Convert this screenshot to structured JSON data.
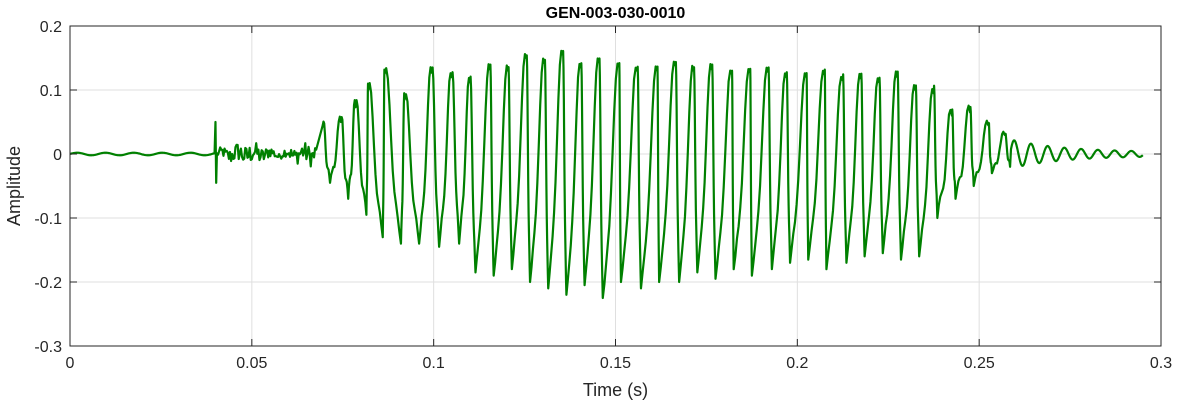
{
  "chart_data": {
    "type": "line",
    "title": "GEN-003-030-0010",
    "xlabel": "Time (s)",
    "ylabel": "Amplitude",
    "xlim": [
      0,
      0.3
    ],
    "ylim": [
      -0.3,
      0.2
    ],
    "xticks": [
      0,
      0.05,
      0.1,
      0.15,
      0.2,
      0.25,
      0.3
    ],
    "xtick_labels": [
      "0",
      "0.05",
      "0.1",
      "0.15",
      "0.2",
      "0.25",
      "0.3"
    ],
    "yticks": [
      -0.3,
      -0.2,
      -0.1,
      0,
      0.1,
      0.2
    ],
    "ytick_labels": [
      "-0.3",
      "-0.2",
      "-0.1",
      "0",
      "0.1",
      "0.2"
    ],
    "grid": true,
    "line_color": "#008000",
    "series": [
      {
        "signal_duration": 0.295,
        "onset_time": 0.04,
        "voiced_start": 0.068,
        "voiced_end": 0.262,
        "glottal_period": 0.0051,
        "pre_onset_period": 0.0078,
        "pre_onset_amplitude": 0.002,
        "transient_peak": [
          0.04,
          0.05
        ],
        "transient_trough": [
          0.04,
          -0.045
        ],
        "peaks": [
          [
            0.0695,
            0.045
          ],
          [
            0.0745,
            0.05
          ],
          [
            0.0785,
            0.073
          ],
          [
            0.082,
            0.1
          ],
          [
            0.0865,
            0.125
          ],
          [
            0.092,
            0.085
          ],
          [
            0.0995,
            0.127
          ],
          [
            0.105,
            0.12
          ],
          [
            0.11,
            0.112
          ],
          [
            0.1155,
            0.132
          ],
          [
            0.1205,
            0.13
          ],
          [
            0.1255,
            0.15
          ],
          [
            0.1305,
            0.142
          ],
          [
            0.1355,
            0.155
          ],
          [
            0.1405,
            0.135
          ],
          [
            0.1455,
            0.143
          ],
          [
            0.151,
            0.137
          ],
          [
            0.156,
            0.13
          ],
          [
            0.1615,
            0.13
          ],
          [
            0.1665,
            0.138
          ],
          [
            0.1715,
            0.13
          ],
          [
            0.1765,
            0.132
          ],
          [
            0.182,
            0.125
          ],
          [
            0.187,
            0.127
          ],
          [
            0.192,
            0.128
          ],
          [
            0.197,
            0.12
          ],
          [
            0.2025,
            0.12
          ],
          [
            0.2075,
            0.124
          ],
          [
            0.2125,
            0.115
          ],
          [
            0.2175,
            0.118
          ],
          [
            0.2225,
            0.112
          ],
          [
            0.2275,
            0.12
          ],
          [
            0.2325,
            0.1
          ],
          [
            0.2375,
            0.095
          ],
          [
            0.2425,
            0.06
          ],
          [
            0.2475,
            0.065
          ],
          [
            0.2525,
            0.045
          ],
          [
            0.257,
            0.03
          ]
        ],
        "troughs": [
          [
            0.0715,
            -0.045
          ],
          [
            0.0765,
            -0.07
          ],
          [
            0.0815,
            -0.095
          ],
          [
            0.086,
            -0.13
          ],
          [
            0.091,
            -0.14
          ],
          [
            0.096,
            -0.14
          ],
          [
            0.1015,
            -0.145
          ],
          [
            0.107,
            -0.14
          ],
          [
            0.1115,
            -0.185
          ],
          [
            0.1165,
            -0.19
          ],
          [
            0.1215,
            -0.18
          ],
          [
            0.1265,
            -0.2
          ],
          [
            0.1315,
            -0.21
          ],
          [
            0.1365,
            -0.22
          ],
          [
            0.1415,
            -0.205
          ],
          [
            0.1465,
            -0.225
          ],
          [
            0.1515,
            -0.2
          ],
          [
            0.157,
            -0.21
          ],
          [
            0.162,
            -0.2
          ],
          [
            0.1675,
            -0.2
          ],
          [
            0.1725,
            -0.185
          ],
          [
            0.1775,
            -0.195
          ],
          [
            0.1825,
            -0.18
          ],
          [
            0.1875,
            -0.19
          ],
          [
            0.193,
            -0.18
          ],
          [
            0.198,
            -0.17
          ],
          [
            0.203,
            -0.165
          ],
          [
            0.208,
            -0.18
          ],
          [
            0.2135,
            -0.17
          ],
          [
            0.2185,
            -0.16
          ],
          [
            0.2235,
            -0.155
          ],
          [
            0.2285,
            -0.165
          ],
          [
            0.2335,
            -0.16
          ],
          [
            0.2385,
            -0.1
          ],
          [
            0.2435,
            -0.07
          ],
          [
            0.2485,
            -0.05
          ],
          [
            0.2535,
            -0.03
          ],
          [
            0.2585,
            -0.02
          ]
        ]
      }
    ]
  }
}
